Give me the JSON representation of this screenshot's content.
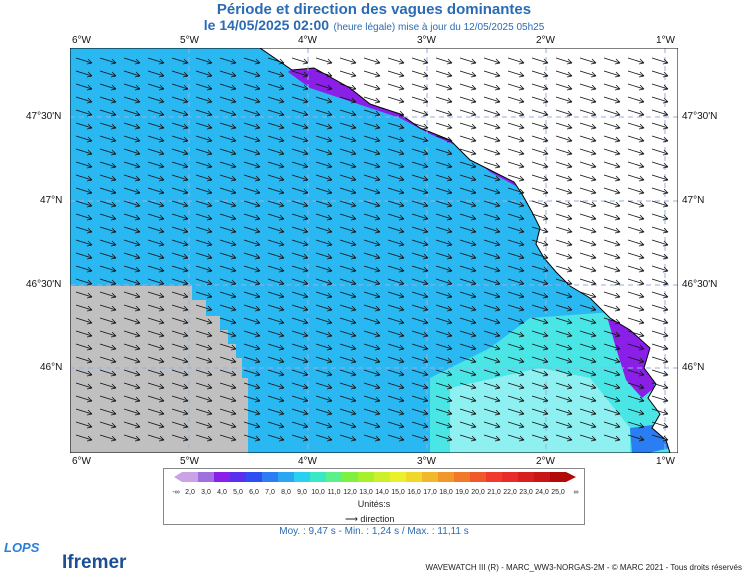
{
  "title": "Période et direction des vagues dominantes",
  "subtitle": {
    "date": "le 14/05/2025 02:00",
    "note": "(heure légale) mise à jour du 12/05/2025 05h25"
  },
  "longitude_ticks": [
    "6°W",
    "5°W",
    "4°W",
    "3°W",
    "2°W",
    "1°W"
  ],
  "latitude_ticks": [
    "47°30'N",
    "47°N",
    "46°30'N",
    "46°N"
  ],
  "legend": {
    "values": [
      "2,0",
      "3,0",
      "4,0",
      "5,0",
      "6,0",
      "7,0",
      "8,0",
      "9,0",
      "10,0",
      "11,0",
      "12,0",
      "13,0",
      "14,0",
      "15,0",
      "16,0",
      "17,0",
      "18,0",
      "19,0",
      "20,0",
      "21,0",
      "22,0",
      "23,0",
      "24,0",
      "25,0"
    ],
    "low_end": "-∞",
    "high_end": "∞",
    "colors": [
      "#c9a3e6",
      "#a070e0",
      "#8a1fe8",
      "#5a2ff0",
      "#2f4ef2",
      "#2a7df2",
      "#2aa6f2",
      "#2ad0f0",
      "#3ae8c8",
      "#5af08a",
      "#7ef040",
      "#a8f02a",
      "#ccf02a",
      "#ecf02a",
      "#f0d82a",
      "#f0b82a",
      "#f0982a",
      "#f07a2a",
      "#f05a2a",
      "#f03a2a",
      "#e82a2a",
      "#d81f1f",
      "#c81515",
      "#b00a0a"
    ],
    "units": "Unités:s",
    "direction_label": "direction"
  },
  "stats": "Moy. : 9,47 s   -   Min. : 1,24 s / Max. : 11,11 s",
  "logos": {
    "lops": "LOPS",
    "ifremer": "Ifremer"
  },
  "credits": "WAVEWATCH III (R) - MARC_WW3-NORGAS-2M - © MARC 2021 - Tous droits réservés",
  "map_colors": {
    "sea_main": "#2ab8f2",
    "sea_light": "#4ae6e6",
    "sea_pale": "#8ef0f0",
    "short_period": "#8a1fe8",
    "blue_mid": "#2a7df2",
    "no_data": "#c0c0c0",
    "land": "#ffffff"
  }
}
